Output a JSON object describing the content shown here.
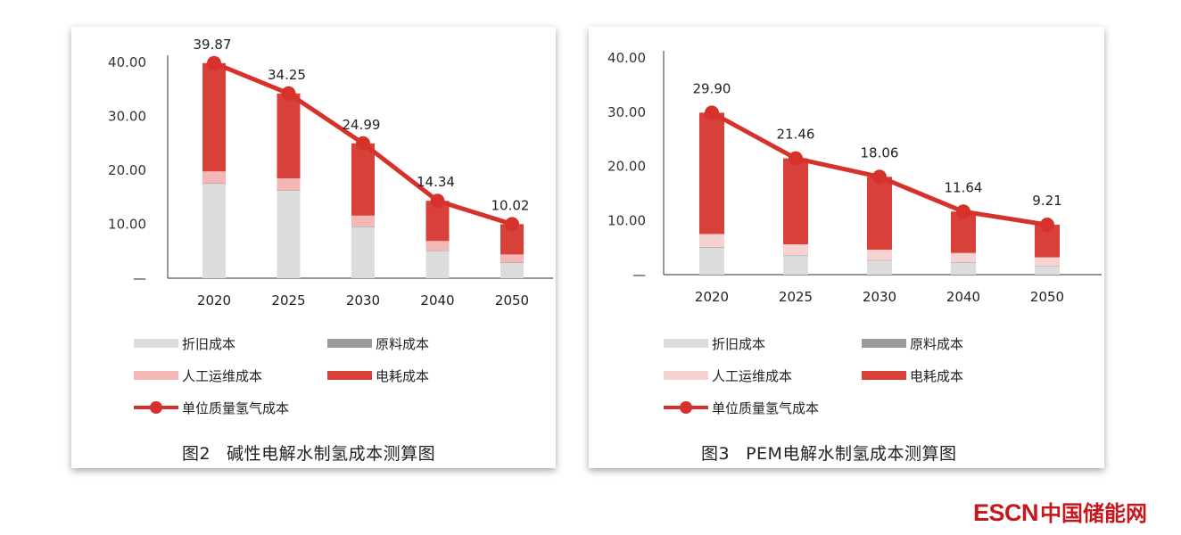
{
  "chart_data": [
    {
      "type": "bar",
      "title": "碱性电解水制氢成本测算图",
      "figure_number": "图2",
      "categories": [
        "2020",
        "2025",
        "2030",
        "2040",
        "2050"
      ],
      "yticks": [
        "40.00",
        "30.00",
        "20.00",
        "10.00",
        "—"
      ],
      "ylim": [
        0,
        40
      ],
      "stacked": true,
      "series": [
        {
          "name": "折旧成本",
          "type": "bar",
          "color": "#dcdcdc",
          "values": [
            17.5,
            16.2,
            9.5,
            5.0,
            2.8
          ]
        },
        {
          "name": "原料成本",
          "type": "bar",
          "color": "#9a9a9a",
          "values": [
            0.1,
            0.1,
            0.1,
            0.1,
            0.1
          ]
        },
        {
          "name": "人工运维成本",
          "type": "bar",
          "color": "#f3b8b6",
          "values": [
            2.2,
            2.2,
            2.0,
            1.8,
            1.5
          ]
        },
        {
          "name": "电耗成本",
          "type": "bar",
          "color": "#d8403a",
          "values": [
            20.07,
            15.75,
            13.39,
            7.44,
            5.62
          ]
        },
        {
          "name": "单位质量氢气成本",
          "type": "line",
          "color": "#d6312b",
          "values": [
            39.87,
            34.25,
            24.99,
            14.34,
            10.02
          ]
        }
      ],
      "data_labels": [
        "39.87",
        "34.25",
        "24.99",
        "14.34",
        "10.02"
      ]
    },
    {
      "type": "bar",
      "title": "PEM电解水制氢成本测算图",
      "figure_number": "图3",
      "categories": [
        "2020",
        "2025",
        "2030",
        "2040",
        "2050"
      ],
      "yticks": [
        "40.00",
        "30.00",
        "20.00",
        "10.00",
        "—"
      ],
      "ylim": [
        0,
        40
      ],
      "stacked": true,
      "series": [
        {
          "name": "折旧成本",
          "type": "bar",
          "color": "#dcdcdc",
          "values": [
            5.0,
            3.5,
            2.6,
            2.2,
            1.5
          ]
        },
        {
          "name": "原料成本",
          "type": "bar",
          "color": "#9a9a9a",
          "values": [
            0.1,
            0.1,
            0.1,
            0.1,
            0.1
          ]
        },
        {
          "name": "人工运维成本",
          "type": "bar",
          "color": "#f6d2d0",
          "values": [
            2.4,
            2.0,
            1.9,
            1.7,
            1.6
          ]
        },
        {
          "name": "电耗成本",
          "type": "bar",
          "color": "#d8403a",
          "values": [
            22.4,
            15.86,
            13.46,
            7.64,
            6.01
          ]
        },
        {
          "name": "单位质量氢气成本",
          "type": "line",
          "color": "#d6312b",
          "values": [
            29.9,
            21.46,
            18.06,
            11.64,
            9.21
          ]
        }
      ],
      "data_labels": [
        "29.90",
        "21.46",
        "18.06",
        "11.64",
        "9.21"
      ]
    }
  ],
  "watermark": {
    "text_en": "ESCN",
    "text_zh": "中国储能网"
  }
}
